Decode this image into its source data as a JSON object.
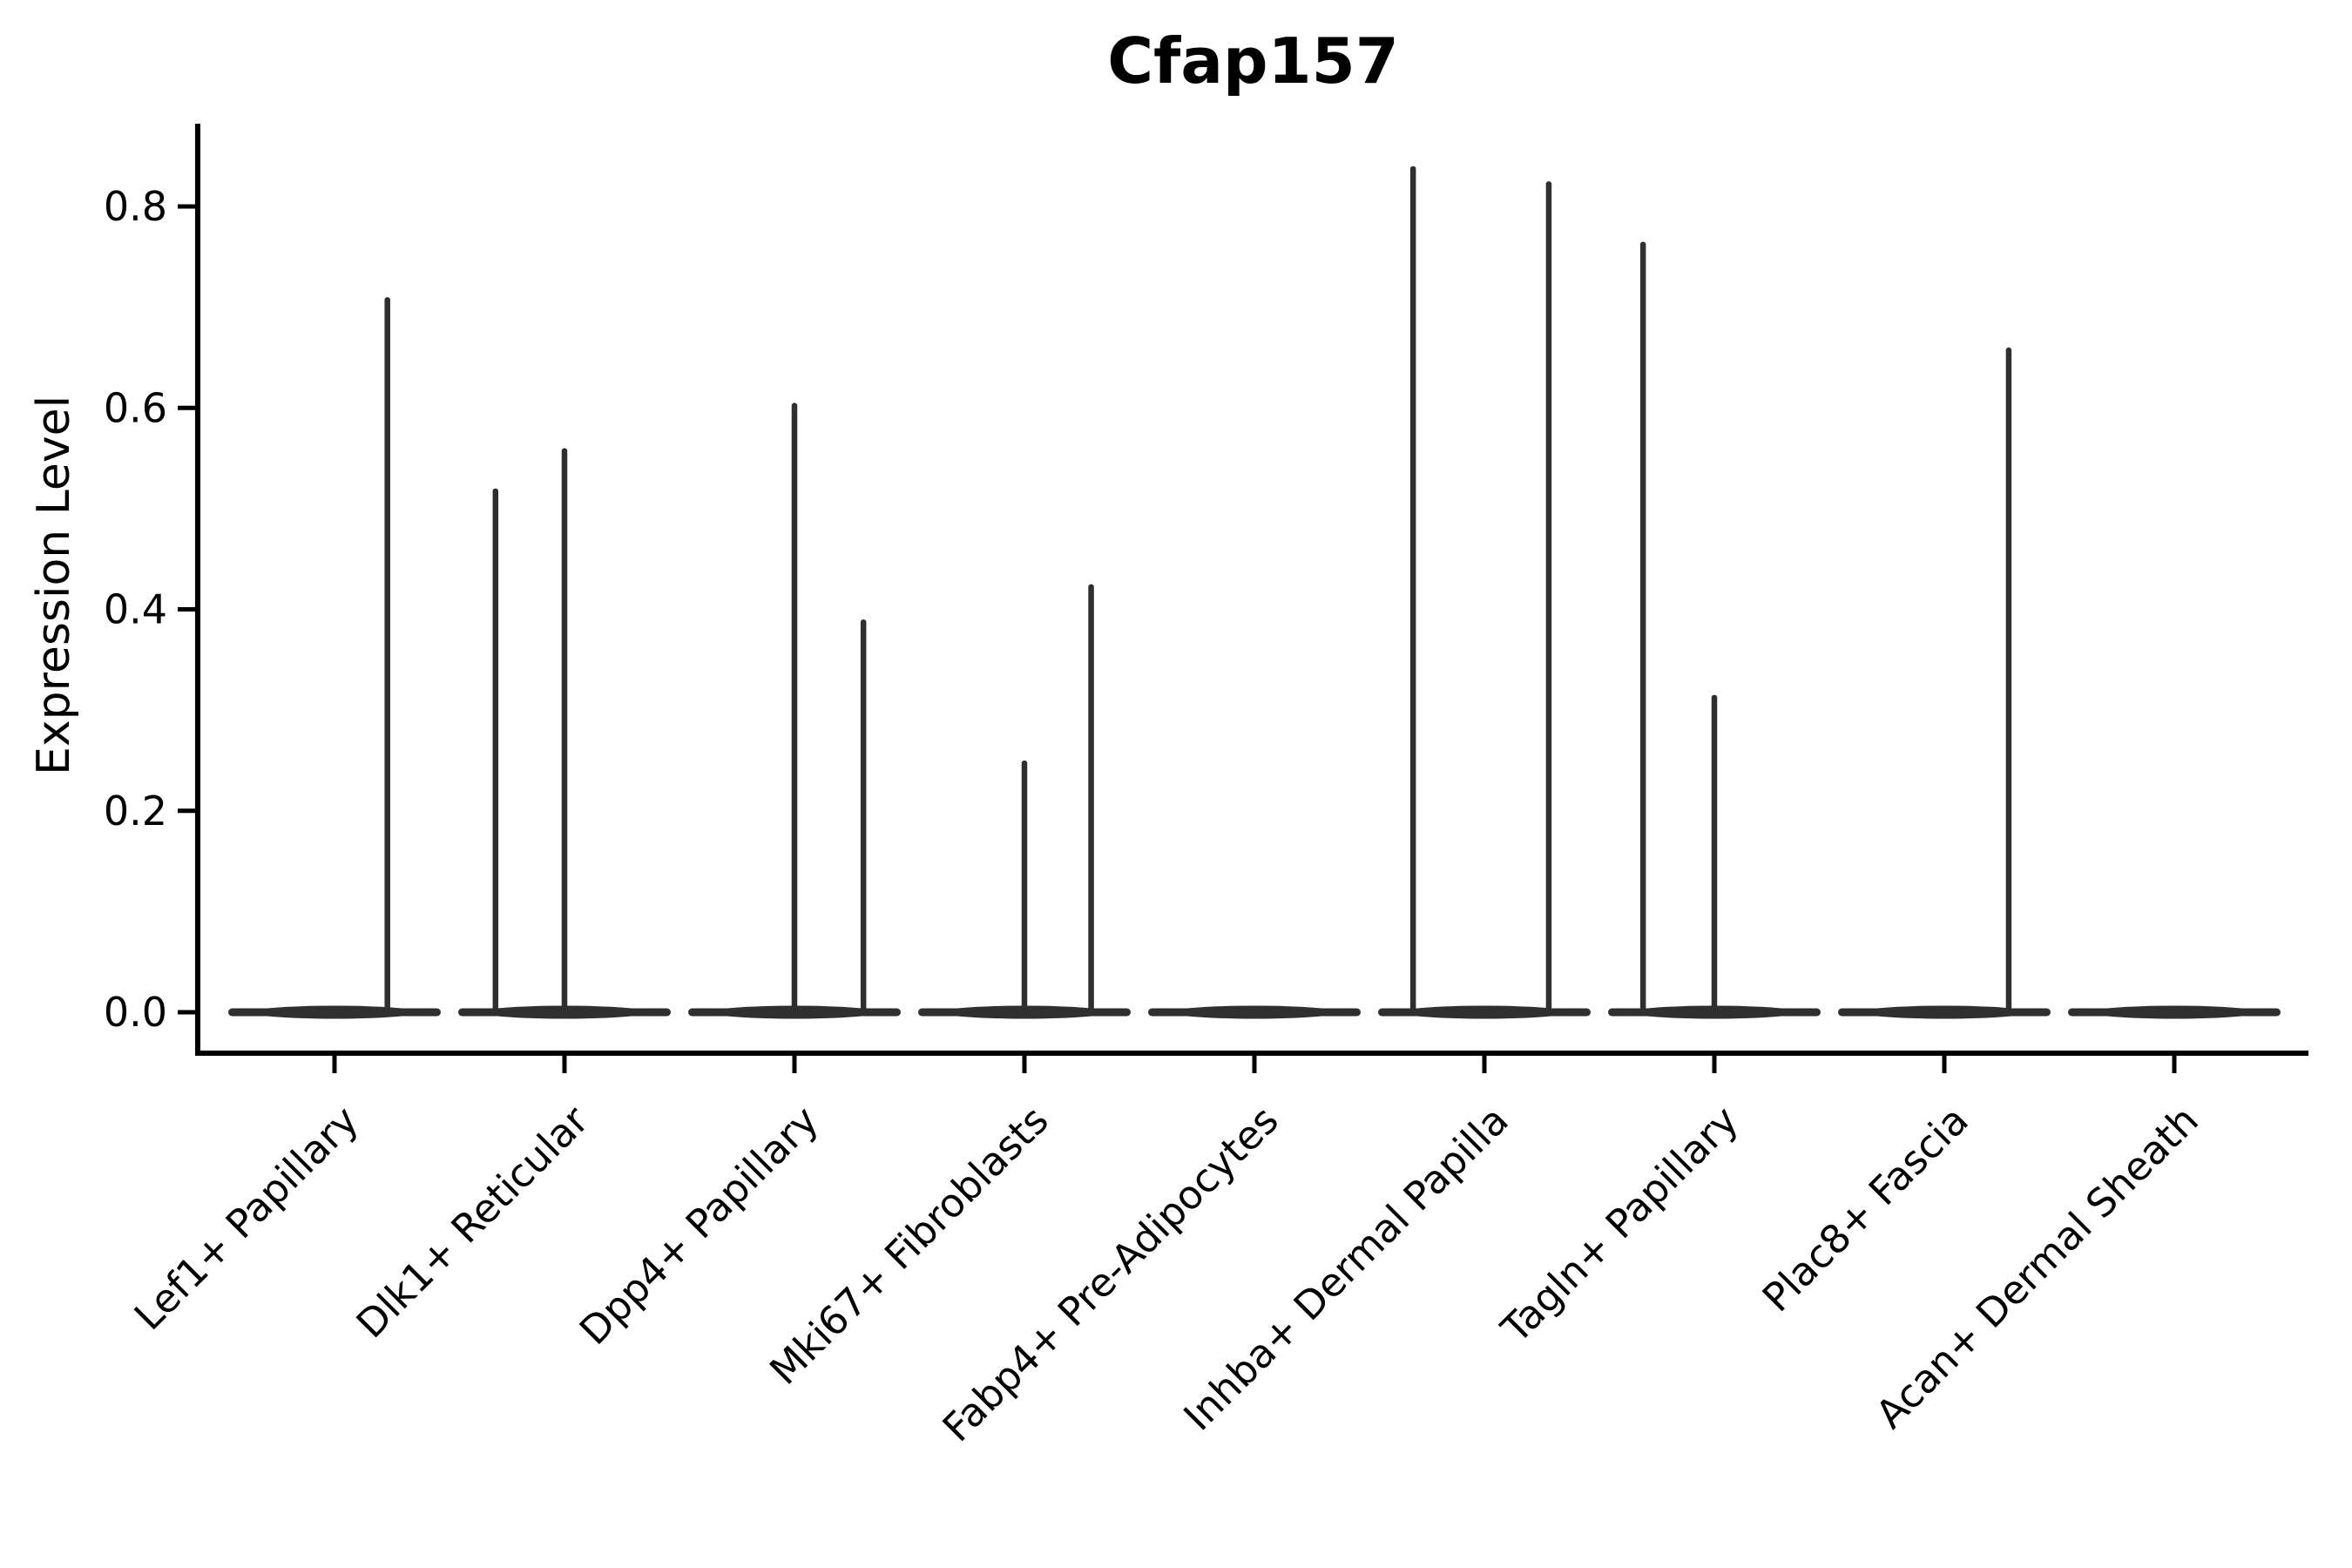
{
  "figure": {
    "title": "Cfap157",
    "ylabel": "Expression Level",
    "xlabel": "",
    "background": "#ffffff",
    "spine_color": "#000000",
    "violin_color": "#2f2f2f"
  },
  "chart_data": {
    "type": "violin",
    "title": "Cfap157",
    "xlabel": "",
    "ylabel": "Expression Level",
    "ylim": [
      -0.04,
      0.885
    ],
    "y_ticks": [
      0.0,
      0.2,
      0.4,
      0.6,
      0.8
    ],
    "y_tick_labels": [
      "0.0",
      "0.2",
      "0.4",
      "0.6",
      "0.8"
    ],
    "grid": false,
    "legend": false,
    "categories": [
      "Lef1+ Papillary",
      "Dlk1+ Reticular",
      "Dpp4+ Papillary",
      "Mki67+ Fibroblasts",
      "Fabp4+ Pre-Adipocytes",
      "Inhba+ Dermal Papilla",
      "Tagln+ Papillary",
      "Plac8+ Fascia",
      "Acan+ Dermal Sheath"
    ],
    "violins": [
      {
        "category": "Lef1+ Papillary",
        "zero_bulk": true,
        "spikes": [
          {
            "offset": 0.23,
            "max": 0.71
          }
        ]
      },
      {
        "category": "Dlk1+ Reticular",
        "zero_bulk": true,
        "spikes": [
          {
            "offset": -0.3,
            "max": 0.52
          },
          {
            "offset": 0.0,
            "max": 0.56
          }
        ]
      },
      {
        "category": "Dpp4+ Papillary",
        "zero_bulk": true,
        "spikes": [
          {
            "offset": 0.0,
            "max": 0.605
          },
          {
            "offset": 0.3,
            "max": 0.39
          }
        ]
      },
      {
        "category": "Mki67+ Fibroblasts",
        "zero_bulk": true,
        "spikes": [
          {
            "offset": 0.0,
            "max": 0.25
          },
          {
            "offset": 0.29,
            "max": 0.425
          }
        ]
      },
      {
        "category": "Fabp4+ Pre-Adipocytes",
        "zero_bulk": true,
        "spikes": []
      },
      {
        "category": "Inhba+ Dermal Papilla",
        "zero_bulk": true,
        "spikes": [
          {
            "offset": -0.31,
            "max": 0.84
          },
          {
            "offset": 0.28,
            "max": 0.825
          }
        ]
      },
      {
        "category": "Tagln+ Papillary",
        "zero_bulk": true,
        "spikes": [
          {
            "offset": -0.31,
            "max": 0.765
          },
          {
            "offset": 0.0,
            "max": 0.315
          }
        ]
      },
      {
        "category": "Plac8+ Fascia",
        "zero_bulk": true,
        "spikes": [
          {
            "offset": 0.28,
            "max": 0.66
          }
        ]
      },
      {
        "category": "Acan+ Dermal Sheath",
        "zero_bulk": true,
        "spikes": []
      }
    ]
  }
}
